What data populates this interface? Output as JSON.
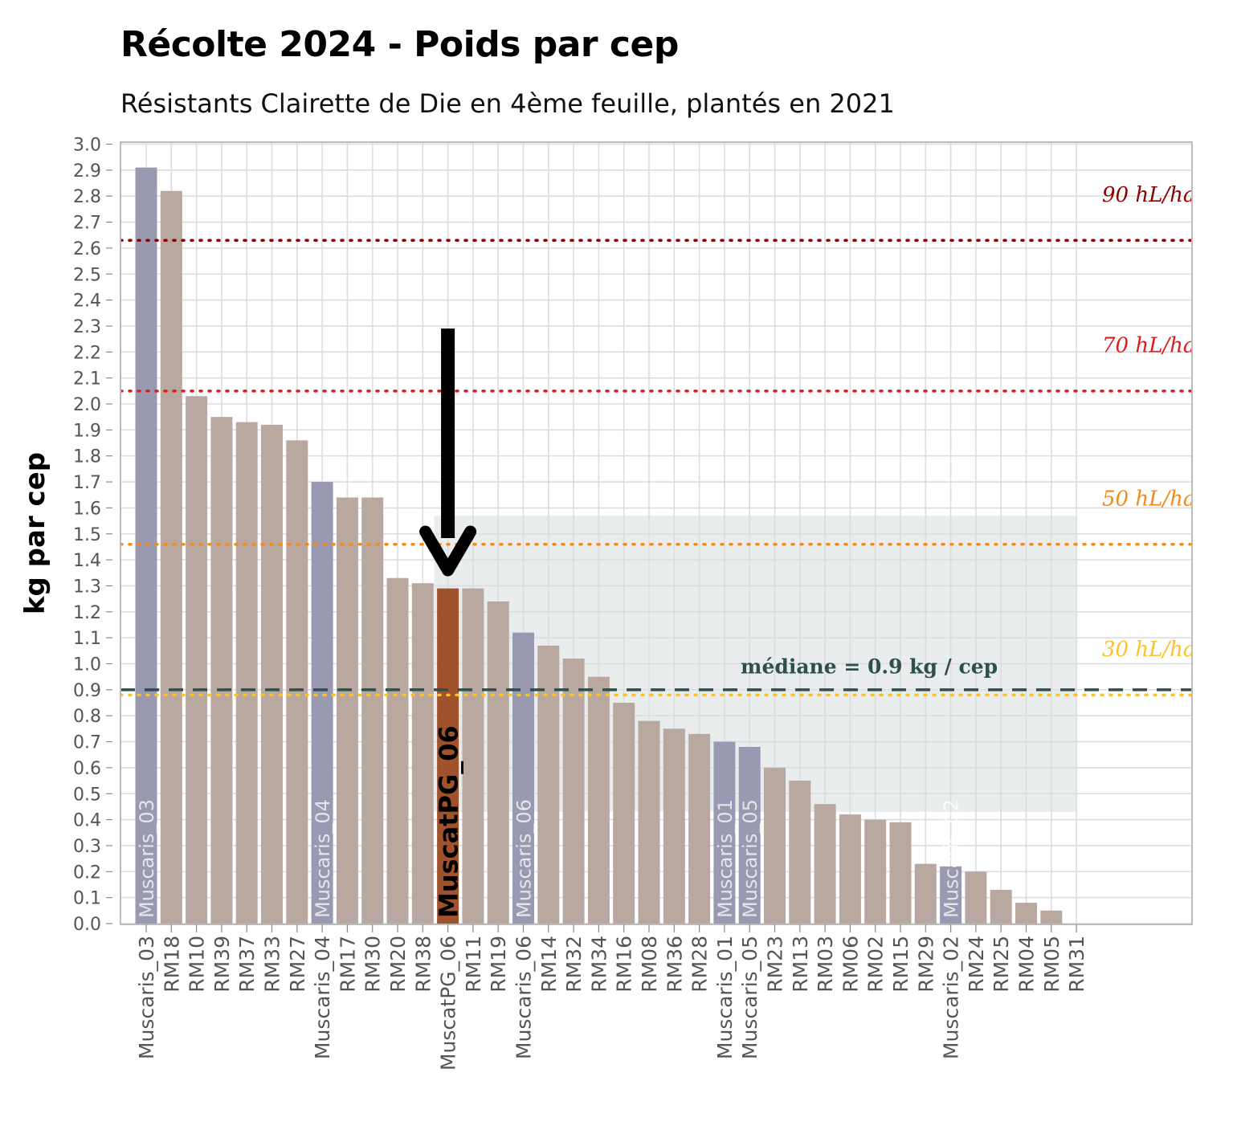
{
  "chart_data": {
    "type": "bar",
    "title": "Récolte 2024 - Poids par cep",
    "subtitle": "Résistants Clairette de Die en 4ème feuille, plantés en 2021",
    "ylabel": "kg par cep",
    "xlabel": "",
    "ylim": [
      0,
      3.0
    ],
    "ytick_step": 0.1,
    "categories": [
      "Muscaris_03",
      "RM18",
      "RM10",
      "RM39",
      "RM37",
      "RM33",
      "RM27",
      "Muscaris_04",
      "RM17",
      "RM30",
      "RM20",
      "RM38",
      "MuscatPG_06",
      "RM11",
      "RM19",
      "Muscaris_06",
      "RM14",
      "RM32",
      "RM34",
      "RM16",
      "RM08",
      "RM36",
      "RM28",
      "Muscaris_01",
      "Muscaris_05",
      "RM23",
      "RM13",
      "RM03",
      "RM06",
      "RM02",
      "RM15",
      "RM29",
      "Muscaris_02",
      "RM24",
      "RM25",
      "RM04",
      "RM05",
      "RM31"
    ],
    "values": [
      2.91,
      2.82,
      2.03,
      1.95,
      1.93,
      1.92,
      1.86,
      1.7,
      1.64,
      1.64,
      1.33,
      1.31,
      1.29,
      1.29,
      1.24,
      1.12,
      1.07,
      1.02,
      0.95,
      0.85,
      0.78,
      0.75,
      0.73,
      0.7,
      0.68,
      0.6,
      0.55,
      0.46,
      0.42,
      0.4,
      0.39,
      0.23,
      0.22,
      0.2,
      0.13,
      0.08,
      0.05,
      0.0
    ],
    "groups": [
      "Muscaris",
      "RM",
      "RM",
      "RM",
      "RM",
      "RM",
      "RM",
      "Muscaris",
      "RM",
      "RM",
      "RM",
      "RM",
      "MuscatPG",
      "RM",
      "RM",
      "Muscaris",
      "RM",
      "RM",
      "RM",
      "RM",
      "RM",
      "RM",
      "RM",
      "Muscaris",
      "Muscaris",
      "RM",
      "RM",
      "RM",
      "RM",
      "RM",
      "RM",
      "RM",
      "Muscaris",
      "RM",
      "RM",
      "RM",
      "RM",
      "RM"
    ],
    "in_bar_labels": [
      {
        "category": "Muscaris_03",
        "text": "Muscaris_03"
      },
      {
        "category": "Muscaris_04",
        "text": "Muscaris_04"
      },
      {
        "category": "MuscatPG_06",
        "text": "MuscatPG_06"
      },
      {
        "category": "Muscaris_06",
        "text": "Muscaris_06"
      },
      {
        "category": "Muscaris_01",
        "text": "Muscaris_01"
      },
      {
        "category": "Muscaris_05",
        "text": "Muscaris_05"
      },
      {
        "category": "Muscaris_02",
        "text": "Muscaris_02"
      }
    ],
    "highlight": {
      "category": "MuscatPG_06",
      "arrow_from_value": 2.29,
      "arrow_to_value": 1.36
    },
    "iqr_band": {
      "from_category": "MuscatPG_06",
      "to_category": "RM31",
      "ymin": 0.43,
      "ymax": 1.57
    },
    "reference_lines": [
      {
        "label": "90 hL/ha",
        "value": 2.63,
        "label_value": 2.81,
        "color": "#8b0000",
        "style": "dotted"
      },
      {
        "label": "70 hL/ha",
        "value": 2.05,
        "label_value": 2.23,
        "color": "#e31a1c",
        "style": "dotted"
      },
      {
        "label": "50 hL/ha",
        "value": 1.46,
        "label_value": 1.64,
        "color": "#f28a1c",
        "style": "dotted"
      },
      {
        "label": "30 hL/ha",
        "value": 0.88,
        "label_value": 1.06,
        "color": "#f9c22e",
        "style": "dotted"
      }
    ],
    "median": {
      "label": "médiane = 0.9 kg / cep",
      "value": 0.9,
      "label_value": 0.99,
      "label_category": "Muscaris_01",
      "color": "#2f4f4f",
      "style": "dashed"
    },
    "colors": {
      "Muscaris": "#9a99b2",
      "RM": "#b8a8a0",
      "MuscatPG": "#a0522d",
      "band": "#e9edee",
      "grid": "#dddddd",
      "panel_border": "#bbbbbb",
      "tick_text": "#555555"
    }
  }
}
